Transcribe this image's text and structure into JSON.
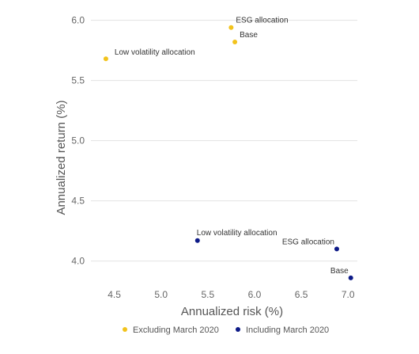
{
  "chart_data": {
    "type": "scatter",
    "xlabel": "Annualized risk (%)",
    "ylabel": "Annualized return (%)",
    "xlim": [
      4.25,
      7.1
    ],
    "ylim": [
      3.8,
      6.05
    ],
    "x_ticks": [
      "4.5",
      "5.0",
      "5.5",
      "6.0",
      "6.5",
      "7.0"
    ],
    "y_ticks": [
      "4.0",
      "4.5",
      "5.0",
      "5.5",
      "6.0"
    ],
    "grid": "horizontal",
    "legend_position": "bottom",
    "series": [
      {
        "name": "Excluding March 2020",
        "color": "#f2c31c",
        "points": [
          {
            "x": 4.41,
            "y": 5.68,
            "label": "Low volatility allocation"
          },
          {
            "x": 5.75,
            "y": 5.94,
            "label": "ESG allocation"
          },
          {
            "x": 5.79,
            "y": 5.82,
            "label": "Base"
          }
        ]
      },
      {
        "name": "Including March 2020",
        "color": "#0d1a87",
        "points": [
          {
            "x": 5.39,
            "y": 4.17,
            "label": "Low volatility allocation"
          },
          {
            "x": 6.88,
            "y": 4.1,
            "label": "ESG allocation"
          },
          {
            "x": 7.03,
            "y": 3.86,
            "label": "Base"
          }
        ]
      }
    ]
  }
}
